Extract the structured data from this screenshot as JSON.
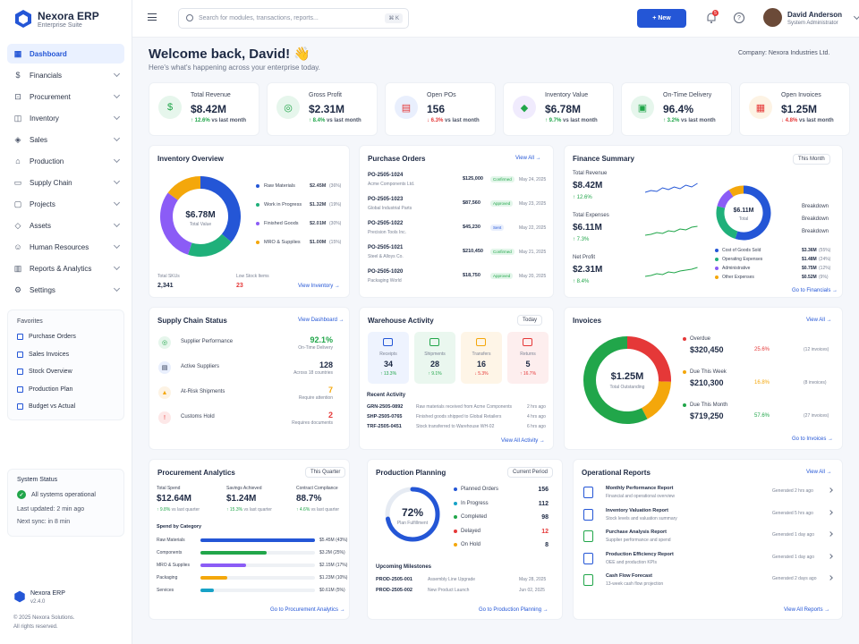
{
  "app": {
    "name": "Nexora ERP",
    "subtitle": "Enterprise Suite",
    "version": "v2.4.0",
    "copyright": "© 2025 Nexora Solutions.",
    "rights": "All rights reserved."
  },
  "sidebar": {
    "items": [
      {
        "label": "Dashboard",
        "icon": "grid-icon"
      },
      {
        "label": "Financials",
        "icon": "dollar-icon"
      },
      {
        "label": "Procurement",
        "icon": "cart-icon"
      },
      {
        "label": "Inventory",
        "icon": "box-icon"
      },
      {
        "label": "Sales",
        "icon": "tag-icon"
      },
      {
        "label": "Production",
        "icon": "factory-icon"
      },
      {
        "label": "Supply Chain",
        "icon": "truck-icon"
      },
      {
        "label": "Projects",
        "icon": "folder-icon"
      },
      {
        "label": "Assets",
        "icon": "layers-icon"
      },
      {
        "label": "Human Resources",
        "icon": "people-icon"
      },
      {
        "label": "Reports & Analytics",
        "icon": "chart-icon"
      },
      {
        "label": "Settings",
        "icon": "gear-icon"
      }
    ],
    "favorites_title": "Favorites",
    "favorites": [
      "Purchase Orders",
      "Sales Invoices",
      "Stock Overview",
      "Production Plan",
      "Budget vs Actual"
    ],
    "status": {
      "title": "System Status",
      "ok": "All systems operational",
      "updated": "Last updated: 2 min ago",
      "next": "Next sync: in 8 min"
    }
  },
  "topbar": {
    "search_placeholder": "Search for modules, transactions, reports...",
    "shortcut": "⌘ K",
    "new_label": "+ New",
    "notif_count": "5",
    "user_name": "David Anderson",
    "user_role": "System Administrator"
  },
  "header": {
    "welcome": "Welcome back, David! 👋",
    "sub": "Here's what's happening across your enterprise today.",
    "company": "Company: Nexora Industries Ltd."
  },
  "kpis": [
    {
      "label": "Total Revenue",
      "value": "$8.42M",
      "delta": "↑ 12.6%",
      "note": " vs last month",
      "up": true,
      "color": "#21a64a",
      "bg": "#e6f6ec",
      "icon": "$"
    },
    {
      "label": "Gross Profit",
      "value": "$2.31M",
      "delta": "↑ 8.4%",
      "note": " vs last month",
      "up": true,
      "color": "#21a64a",
      "bg": "#e6f6ec",
      "icon": "◎"
    },
    {
      "label": "Open POs",
      "value": "156",
      "delta": "↓ 6.3%",
      "note": " vs last month",
      "up": false,
      "color": "#e53838",
      "bg": "#e9effd",
      "icon": "▤"
    },
    {
      "label": "Inventory Value",
      "value": "$6.78M",
      "delta": "↑ 9.7%",
      "note": " vs last month",
      "up": true,
      "color": "#21a64a",
      "bg": "#f0ebfd",
      "icon": "◆"
    },
    {
      "label": "On-Time Delivery",
      "value": "96.4%",
      "delta": "↑ 3.2%",
      "note": " vs last month",
      "up": true,
      "color": "#21a64a",
      "bg": "#e6f6ec",
      "icon": "▣"
    },
    {
      "label": "Open Invoices",
      "value": "$1.25M",
      "delta": "↓ 4.8%",
      "note": " vs last month",
      "up": false,
      "color": "#e53838",
      "bg": "#fdf3e4",
      "icon": "▦"
    }
  ],
  "inventory": {
    "title": "Inventory Overview",
    "center_value": "$6.78M",
    "center_label": "Total Value",
    "items": [
      {
        "name": "Raw Materials",
        "value": "$2.45M",
        "pct": "(36%)",
        "share": 36,
        "color": "#2456d6"
      },
      {
        "name": "Work in Progress",
        "value": "$1.32M",
        "pct": "(19%)",
        "share": 19,
        "color": "#1fb07a"
      },
      {
        "name": "Finished Goods",
        "value": "$2.01M",
        "pct": "(30%)",
        "share": 30,
        "color": "#8b5cf6"
      },
      {
        "name": "MRO & Supplies",
        "value": "$1.00M",
        "pct": "(15%)",
        "share": 15,
        "color": "#f4a70b"
      }
    ],
    "skus_label": "Total SKUs",
    "skus": "2,341",
    "low_label": "Low Stock Items",
    "low": "23",
    "link": "View Inventory →"
  },
  "po": {
    "title": "Purchase Orders",
    "link": "View All →",
    "rows": [
      {
        "id": "PO-2505-1024",
        "vendor": "Acme Components Ltd.",
        "amount": "$125,000",
        "status": "Confirmed",
        "date": "May 24, 2025"
      },
      {
        "id": "PO-2505-1023",
        "vendor": "Global Industrial Parts",
        "amount": "$87,560",
        "status": "Approved",
        "date": "May 23, 2025"
      },
      {
        "id": "PO-2505-1022",
        "vendor": "Precision Tools Inc.",
        "amount": "$45,230",
        "status": "Sent",
        "date": "May 22, 2025"
      },
      {
        "id": "PO-2505-1021",
        "vendor": "Steel & Alloys Co.",
        "amount": "$210,450",
        "status": "Confirmed",
        "date": "May 21, 2025"
      },
      {
        "id": "PO-2505-1020",
        "vendor": "Packaging World",
        "amount": "$18,750",
        "status": "Approved",
        "date": "May 20, 2025"
      }
    ]
  },
  "finance": {
    "title": "Finance Summary",
    "period": "This Month",
    "metrics": [
      {
        "label": "Total Revenue",
        "value": "$8.42M",
        "delta": "↑ 12.6%"
      },
      {
        "label": "Total Expenses",
        "value": "$6.11M",
        "delta": "↑ 7.3%"
      },
      {
        "label": "Net Profit",
        "value": "$2.31M",
        "delta": "↑ 8.4%"
      }
    ],
    "donut_value": "$6.11M",
    "donut_label": "Total",
    "breakdown": "Breakdown",
    "items": [
      {
        "name": "Cost of Goods Sold",
        "value": "$3.36M",
        "pct": "(55%)",
        "share": 55,
        "color": "#2456d6"
      },
      {
        "name": "Operating Expenses",
        "value": "$1.48M",
        "pct": "(24%)",
        "share": 24,
        "color": "#1fb07a"
      },
      {
        "name": "Administrative",
        "value": "$0.75M",
        "pct": "(12%)",
        "share": 12,
        "color": "#8b5cf6"
      },
      {
        "name": "Other Expenses",
        "value": "$0.52M",
        "pct": "(9%)",
        "share": 9,
        "color": "#f4a70b"
      }
    ],
    "link": "Go to Financials →"
  },
  "supply": {
    "title": "Supply Chain Status",
    "link": "View Dashboard →",
    "rows": [
      {
        "label": "Supplier Performance",
        "value": "92.1%",
        "sub": "On-Time Delivery",
        "color": "#21a64a",
        "bg": "#e6f6ec",
        "icon": "◎"
      },
      {
        "label": "Active Suppliers",
        "value": "128",
        "sub": "Across 18 countries",
        "color": "#1e2a44",
        "bg": "#e9effd",
        "icon": "▤"
      },
      {
        "label": "At-Risk Shipments",
        "value": "7",
        "sub": "Require attention",
        "color": "#f4a70b",
        "bg": "#fdf3e4",
        "icon": "▲"
      },
      {
        "label": "Customs Hold",
        "value": "2",
        "sub": "Requires documents",
        "color": "#e53838",
        "bg": "#fde8e8",
        "icon": "!"
      }
    ]
  },
  "warehouse": {
    "title": "Warehouse Activity",
    "period": "Today",
    "tiles": [
      {
        "label": "Receipts",
        "value": "34",
        "delta": "↑ 13.3%",
        "bg": "#eef3fe",
        "ic": "#2456d6",
        "dc": "#21a64a"
      },
      {
        "label": "Shipments",
        "value": "28",
        "delta": "↑ 9.1%",
        "bg": "#eaf7ef",
        "ic": "#21a64a",
        "dc": "#21a64a"
      },
      {
        "label": "Transfers",
        "value": "16",
        "delta": "↓ 5.3%",
        "bg": "#fef5e7",
        "ic": "#f4a70b",
        "dc": "#e53838"
      },
      {
        "label": "Returns",
        "value": "5",
        "delta": "↑ 16.7%",
        "bg": "#fdeeee",
        "ic": "#e53838",
        "dc": "#e53838"
      }
    ],
    "recent_title": "Recent Activity",
    "recent": [
      {
        "id": "GRN-2505-0892",
        "text": "Raw materials received from Acme Components",
        "time": "2 hrs ago"
      },
      {
        "id": "SHP-2505-0765",
        "text": "Finished goods shipped to Global Retailers",
        "time": "4 hrs ago"
      },
      {
        "id": "TRF-2505-0451",
        "text": "Stock transferred to Warehouse WH-02",
        "time": "6 hrs ago"
      }
    ],
    "link": "View All Activity →"
  },
  "invoices": {
    "title": "Invoices",
    "link": "View All →",
    "center_value": "$1.25M",
    "center_label": "Total Outstanding",
    "rows": [
      {
        "label": "Overdue",
        "value": "$320,450",
        "pct": "25.6%",
        "count": "(12 invoices)",
        "share": 25.6,
        "color": "#e53838"
      },
      {
        "label": "Due This Week",
        "value": "$210,300",
        "pct": "16.8%",
        "count": "(8 invoices)",
        "share": 16.8,
        "color": "#f4a70b"
      },
      {
        "label": "Due This Month",
        "value": "$719,250",
        "pct": "57.6%",
        "count": "(27 invoices)",
        "share": 57.6,
        "color": "#21a64a"
      }
    ],
    "footer": "Go to Invoices →"
  },
  "procurement": {
    "title": "Procurement Analytics",
    "period": "This Quarter",
    "metrics": [
      {
        "label": "Total Spend",
        "value": "$12.64M",
        "delta": "↑ 9.8%"
      },
      {
        "label": "Savings Achieved",
        "value": "$1.24M",
        "delta": "↑ 15.3%"
      },
      {
        "label": "Contract Compliance",
        "value": "88.7%",
        "delta": "↑ 4.6%"
      }
    ],
    "note": " vs last quarter",
    "cat_title": "Spend by Category",
    "cats": [
      {
        "name": "Raw Materials",
        "value": "$5.45M (43%)",
        "share": 43,
        "color": "#2456d6"
      },
      {
        "name": "Components",
        "value": "$3.2M (25%)",
        "share": 25,
        "color": "#21a64a"
      },
      {
        "name": "MRO & Supplies",
        "value": "$2.15M (17%)",
        "share": 17,
        "color": "#8b5cf6"
      },
      {
        "name": "Packaging",
        "value": "$1.23M (10%)",
        "share": 10,
        "color": "#f4a70b"
      },
      {
        "name": "Services",
        "value": "$0.61M (5%)",
        "share": 5,
        "color": "#17a2c7"
      }
    ],
    "link": "Go to Procurement Analytics →"
  },
  "production": {
    "title": "Production Planning",
    "period": "Current Period",
    "pct": 72,
    "pct_label": "72%",
    "pct_sub": "Plan Fulfillment",
    "rows": [
      {
        "label": "Planned Orders",
        "value": "156",
        "color": "#2456d6",
        "vc": "#1e2a44"
      },
      {
        "label": "In Progress",
        "value": "112",
        "color": "#17a2c7",
        "vc": "#1e2a44"
      },
      {
        "label": "Completed",
        "value": "98",
        "color": "#21a64a",
        "vc": "#1e2a44"
      },
      {
        "label": "Delayed",
        "value": "12",
        "color": "#e53838",
        "vc": "#e53838"
      },
      {
        "label": "On Hold",
        "value": "8",
        "color": "#f4a70b",
        "vc": "#1e2a44"
      }
    ],
    "ms_title": "Upcoming Milestones",
    "milestones": [
      {
        "id": "PROD-2505-001",
        "text": "Assembly Line Upgrade",
        "date": "May 28, 2025"
      },
      {
        "id": "PROD-2505-002",
        "text": "New Product Launch",
        "date": "Jun 02, 2025"
      }
    ],
    "link": "Go to Production Planning →"
  },
  "reports": {
    "title": "Operational Reports",
    "link": "View All →",
    "rows": [
      {
        "name": "Monthly Performance Report",
        "desc": "Financial and operational overview",
        "gen": "Generated 2 hrs ago",
        "color": "#2456d6"
      },
      {
        "name": "Inventory Valuation Report",
        "desc": "Stock levels and valuation summary",
        "gen": "Generated 5 hrs ago",
        "color": "#2456d6"
      },
      {
        "name": "Purchase Analysis Report",
        "desc": "Supplier performance and spend",
        "gen": "Generated 1 day ago",
        "color": "#21a64a"
      },
      {
        "name": "Production Efficiency Report",
        "desc": "OEE and production KPIs",
        "gen": "Generated 1 day ago",
        "color": "#2456d6"
      },
      {
        "name": "Cash Flow Forecast",
        "desc": "13-week cash flow projection",
        "gen": "Generated 2 days ago",
        "color": "#21a64a"
      }
    ],
    "footer": "View All Reports →"
  }
}
